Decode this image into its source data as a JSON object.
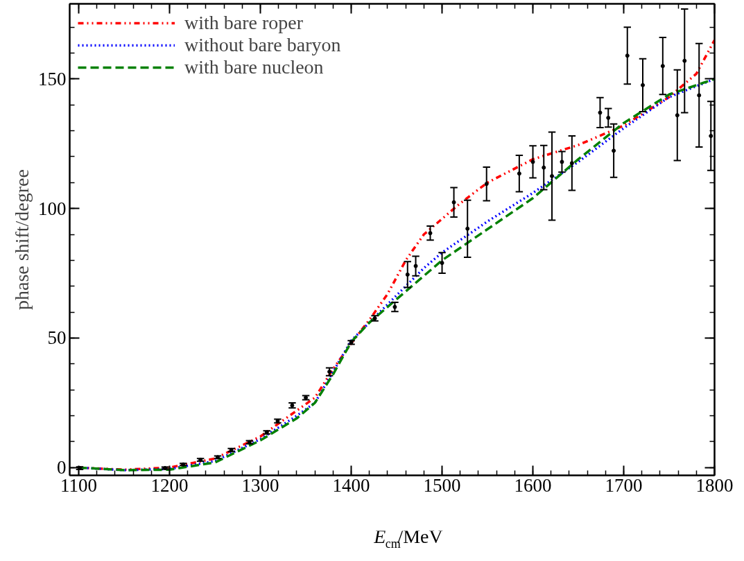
{
  "chart_data": {
    "type": "line",
    "xlabel": "E$_{cm}$/MeV",
    "ylabel": "phase shift/degree",
    "xlim": [
      1090,
      1800
    ],
    "xticks": [
      1100,
      1200,
      1300,
      1400,
      1500,
      1600,
      1700,
      1800
    ],
    "ylim": [
      -3,
      179
    ],
    "yticks": [
      0,
      50,
      100,
      150
    ],
    "grid": false,
    "legend": "top left",
    "series": [
      {
        "name": "with bare roper",
        "color": "#ff0000",
        "line_style": "dashdot",
        "x": [
          1100,
          1150,
          1200,
          1250,
          1300,
          1340,
          1360,
          1380,
          1400,
          1420,
          1440,
          1460,
          1480,
          1500,
          1520,
          1550,
          1600,
          1650,
          1700,
          1750,
          1780,
          1800
        ],
        "values": [
          0,
          -0.8,
          0,
          3.5,
          12,
          22,
          27,
          38,
          48,
          57,
          67,
          80,
          90,
          96,
          102,
          110,
          119,
          124.5,
          132,
          143,
          152,
          165
        ]
      },
      {
        "name": "without bare baryon",
        "color": "#0000ff",
        "line_style": "dotted",
        "x": [
          1100,
          1150,
          1200,
          1250,
          1300,
          1340,
          1360,
          1380,
          1400,
          1420,
          1440,
          1460,
          1480,
          1500,
          1550,
          1600,
          1650,
          1700,
          1750,
          1800
        ],
        "values": [
          0,
          -1,
          -0.5,
          2.5,
          11,
          20,
          25,
          37,
          49,
          56,
          63,
          70,
          77,
          83,
          95,
          106,
          118,
          131,
          143,
          150
        ]
      },
      {
        "name": "with bare nucleon",
        "color": "#008000",
        "line_style": "dashed",
        "x": [
          1100,
          1150,
          1200,
          1250,
          1300,
          1340,
          1360,
          1380,
          1400,
          1420,
          1440,
          1460,
          1480,
          1500,
          1550,
          1600,
          1650,
          1700,
          1750,
          1800
        ],
        "values": [
          0,
          -1,
          -0.8,
          2,
          10.5,
          19,
          25,
          36,
          48.5,
          56,
          62,
          68,
          74,
          80,
          92,
          104,
          119,
          133,
          144,
          150
        ]
      },
      {
        "type": "scatter",
        "marker": "circle",
        "color": "#000000",
        "x": [
          1101,
          1195,
          1215,
          1234,
          1253,
          1268,
          1288,
          1307,
          1319,
          1335,
          1350,
          1376,
          1400,
          1426,
          1448,
          1462,
          1471,
          1487,
          1500,
          1513,
          1528,
          1549,
          1585,
          1600,
          1612,
          1621,
          1632,
          1643,
          1674,
          1683,
          1689,
          1704,
          1721,
          1743,
          1759,
          1767,
          1783,
          1796
        ],
        "values": [
          -0.2,
          -0.2,
          1.2,
          3,
          4,
          6.8,
          9.8,
          13.6,
          18,
          24,
          27,
          37,
          48.3,
          57.6,
          62,
          74.5,
          77.8,
          90.5,
          79,
          102.4,
          92.2,
          109.5,
          113.5,
          118,
          115.8,
          112.5,
          118,
          117.5,
          137,
          135,
          122.3,
          159,
          147.6,
          155,
          136,
          157,
          143.7,
          128
        ],
        "errors": [
          0.5,
          0.4,
          0.4,
          0.5,
          0.5,
          0.6,
          0.6,
          0.6,
          0.7,
          1,
          0.8,
          1.5,
          0.7,
          1,
          1.8,
          5,
          3.8,
          2.7,
          4,
          5.7,
          11,
          6.5,
          7,
          6.2,
          8.5,
          17,
          4,
          10.5,
          5.8,
          3.6,
          10.3,
          11,
          10.2,
          11,
          17.5,
          20,
          20,
          13.3
        ]
      }
    ]
  }
}
